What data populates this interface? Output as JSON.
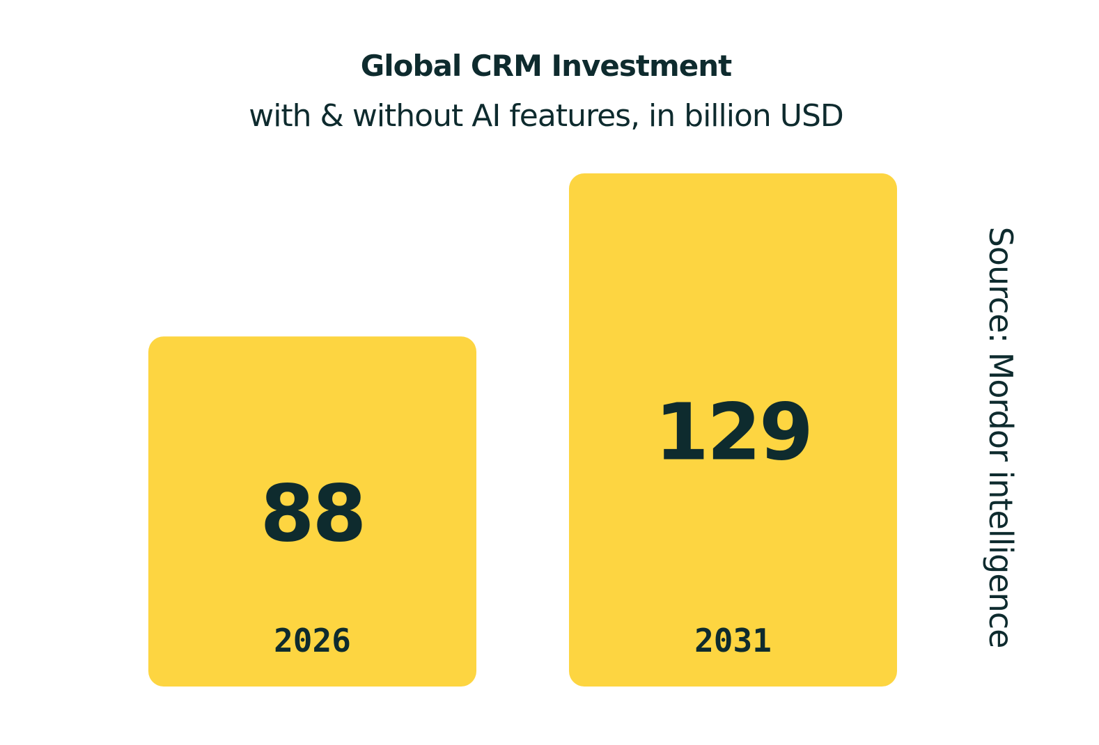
{
  "colors": {
    "background": "#ffffff",
    "bar": "#fdd541",
    "text": "#0e2b2e"
  },
  "chart_data": {
    "type": "bar",
    "title": "Global CRM Investment",
    "subtitle": "with & without AI features, in billion USD",
    "categories": [
      "2026",
      "2031"
    ],
    "values": [
      88,
      129
    ],
    "value_labels": [
      "88",
      "129"
    ],
    "xlabel": "",
    "ylabel": "",
    "grid": false,
    "legend": "none",
    "source": "Source: Mordor intelligence"
  }
}
